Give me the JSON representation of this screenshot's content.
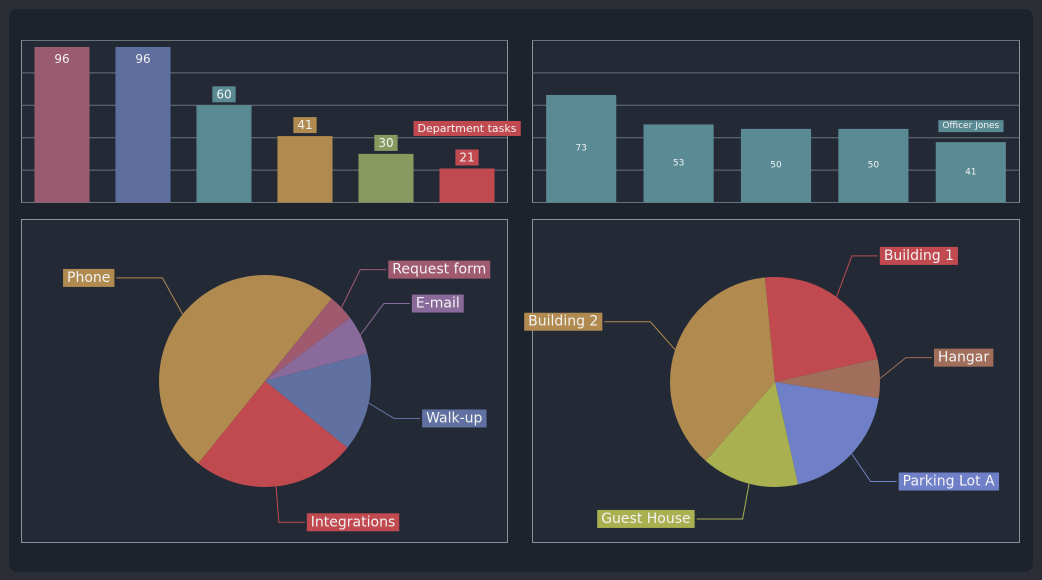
{
  "chart_data": [
    {
      "type": "bar",
      "categories": [
        null,
        null,
        null,
        null,
        null,
        null
      ],
      "values": [
        96,
        96,
        60,
        41,
        30,
        21
      ],
      "colors": [
        "#9a5a70",
        "#5e6e9e",
        "#5a8a94",
        "#b08a4e",
        "#889a60",
        "#c04a50"
      ],
      "ylim": [
        0,
        100
      ],
      "yticks": [
        0,
        20,
        40,
        60,
        80,
        100
      ],
      "grid": true,
      "annotation": "Department tasks"
    },
    {
      "type": "bar",
      "categories": [
        null,
        null,
        null,
        null,
        null
      ],
      "values": [
        73,
        53,
        50,
        50,
        41
      ],
      "colors": [
        "#5a8a94",
        "#5a8a94",
        "#5a8a94",
        "#5a8a94",
        "#5a8a94"
      ],
      "ylim": [
        0,
        110
      ],
      "yticks": [
        0,
        22,
        44,
        66,
        88,
        110
      ],
      "grid": true,
      "annotation": "Officer Jones"
    },
    {
      "type": "pie",
      "categories": [
        "Phone",
        "Request form",
        "E-mail",
        "Walk-up",
        "Integrations"
      ],
      "values": [
        50,
        4,
        6,
        15,
        25
      ],
      "colors": [
        "#b08a4e",
        "#a05a70",
        "#8a6a9a",
        "#6070a0",
        "#c04a50"
      ]
    },
    {
      "type": "pie",
      "categories": [
        "Building 1",
        "Hangar",
        "Parking Lot A",
        "Guest House",
        "Building 2"
      ],
      "values": [
        23,
        6,
        19,
        15,
        37
      ],
      "colors": [
        "#c04a50",
        "#a06e5a",
        "#7080c8",
        "#a8b050",
        "#b08a4e"
      ]
    }
  ]
}
